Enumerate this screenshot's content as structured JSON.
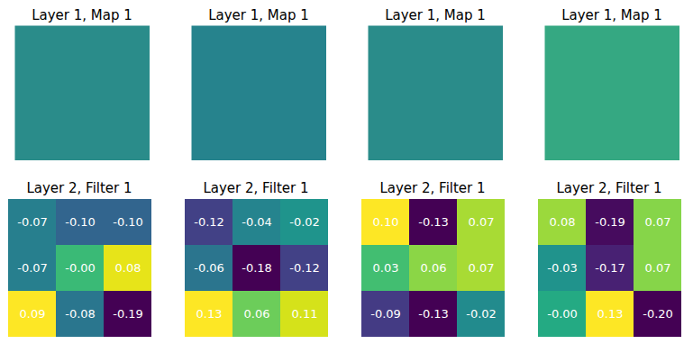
{
  "chart_data": [
    {
      "type": "image",
      "title": "Layer 1, Map 1",
      "color": "#2a8c8a",
      "tick_labels": false
    },
    {
      "type": "image",
      "title": "Layer 1, Map 1",
      "color": "#26838d",
      "tick_labels": false
    },
    {
      "type": "image",
      "title": "Layer 1, Map 1",
      "color": "#2a8c8a",
      "tick_labels": false
    },
    {
      "type": "image",
      "title": "Layer 1, Map 1",
      "color": "#35a882",
      "tick_labels": false
    },
    {
      "type": "heatmap",
      "title": "Layer 2, Filter 1",
      "data_labels": true,
      "tick_labels": false,
      "values": [
        [
          -0.07,
          -0.1,
          -0.1
        ],
        [
          -0.07,
          -0.0,
          0.08
        ],
        [
          0.09,
          -0.08,
          -0.19
        ]
      ],
      "value_labels": [
        [
          "-0.07",
          "-0.10",
          "-0.10"
        ],
        [
          "-0.07",
          "-0.00",
          "0.08"
        ],
        [
          "0.09",
          "-0.08",
          "-0.19"
        ]
      ]
    },
    {
      "type": "heatmap",
      "title": "Layer 2, Filter 1",
      "data_labels": true,
      "tick_labels": false,
      "values": [
        [
          -0.12,
          -0.04,
          -0.02
        ],
        [
          -0.06,
          -0.18,
          -0.12
        ],
        [
          0.13,
          0.06,
          0.11
        ]
      ],
      "value_labels": [
        [
          "-0.12",
          "-0.04",
          "-0.02"
        ],
        [
          "-0.06",
          "-0.18",
          "-0.12"
        ],
        [
          "0.13",
          "0.06",
          "0.11"
        ]
      ]
    },
    {
      "type": "heatmap",
      "title": "Layer 2, Filter 1",
      "data_labels": true,
      "tick_labels": false,
      "values": [
        [
          0.1,
          -0.13,
          0.07
        ],
        [
          0.03,
          0.06,
          0.07
        ],
        [
          -0.09,
          -0.13,
          -0.02
        ]
      ],
      "value_labels": [
        [
          "0.10",
          "-0.13",
          "0.07"
        ],
        [
          "0.03",
          "0.06",
          "0.07"
        ],
        [
          "-0.09",
          "-0.13",
          "-0.02"
        ]
      ]
    },
    {
      "type": "heatmap",
      "title": "Layer 2, Filter 1",
      "data_labels": true,
      "tick_labels": false,
      "values": [
        [
          0.08,
          -0.19,
          0.07
        ],
        [
          -0.03,
          -0.17,
          0.07
        ],
        [
          -0.0,
          0.13,
          -0.2
        ]
      ],
      "value_labels": [
        [
          "0.08",
          "-0.19",
          "0.07"
        ],
        [
          "-0.03",
          "-0.17",
          "0.07"
        ],
        [
          "-0.00",
          "0.13",
          "-0.20"
        ]
      ]
    }
  ]
}
